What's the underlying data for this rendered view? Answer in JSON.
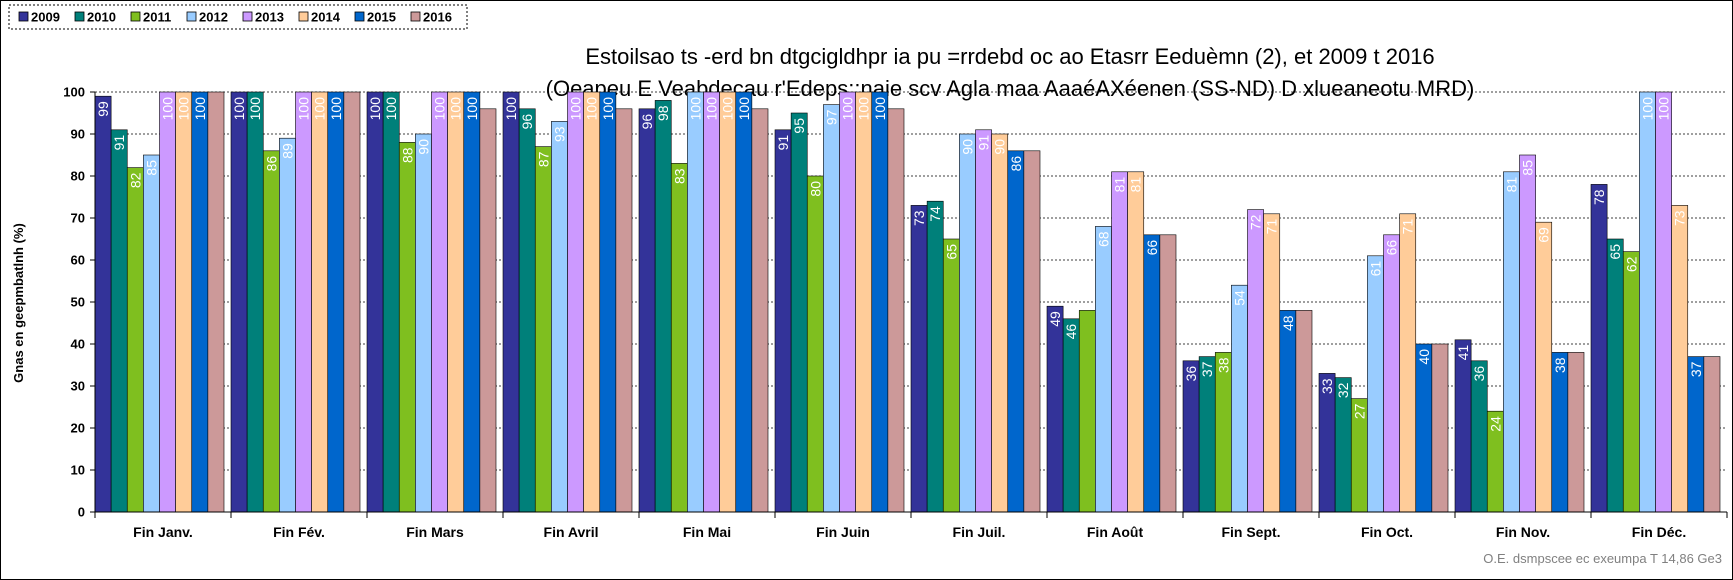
{
  "chart_data": {
    "type": "bar",
    "title_line1": "Estoilsao ts -erd bn dtgcigldhpr ia pu =rrdebd oc ao Etasrr Eeduèmn (2), et 2009 t 2016",
    "title_line2": "(Oeapeu E Veabdecau r'Edeps;:naie scv Agla maa AaaéAXéenen (SS-ND) D xlueaneotu MRD)",
    "ylabel": "Gnas en geepmbatlnh (%)",
    "ylim": [
      0,
      100
    ],
    "yticks": [
      "0",
      "10",
      "20",
      "30",
      "40",
      "50",
      "60",
      "70",
      "80",
      "90",
      "100"
    ],
    "grid": true,
    "legend_position": "top-left",
    "source": "O.E. dsmpscee ec exeumpa T 14,86 Ge3",
    "categories": [
      "Fin Janv.",
      "Fin Fév.",
      "Fin Mars",
      "Fin Avril",
      "Fin Mai",
      "Fin Juin",
      "Fin Juil.",
      "Fin Août",
      "Fin Sept.",
      "Fin Oct.",
      "Fin Nov.",
      "Fin Déc."
    ],
    "series": [
      {
        "name": "2009",
        "color": "#333399",
        "values": [
          99,
          100,
          100,
          100,
          96,
          91,
          73,
          49,
          36,
          33,
          41,
          78
        ],
        "labels": [
          "99",
          "100",
          "100",
          "100",
          "96",
          "91",
          "73",
          "49",
          "36",
          "33",
          "41",
          "78"
        ]
      },
      {
        "name": "2010",
        "color": "#00807a",
        "values": [
          91,
          100,
          100,
          96,
          98,
          95,
          74,
          46,
          37,
          32,
          36,
          65
        ],
        "labels": [
          "91",
          "100",
          "100",
          "96",
          "98",
          "95",
          "74",
          "46",
          "37",
          "32",
          "36",
          "65"
        ]
      },
      {
        "name": "2011",
        "color": "#7fbf1f",
        "values": [
          82,
          86,
          88,
          87,
          83,
          80,
          65,
          48,
          38,
          27,
          24,
          62
        ],
        "labels": [
          "82",
          "86",
          "88",
          "87",
          "83",
          "80",
          "65",
          "",
          "38",
          "27",
          "24",
          "62"
        ]
      },
      {
        "name": "2012",
        "color": "#99ccff",
        "values": [
          85,
          89,
          90,
          93,
          100,
          97,
          90,
          68,
          54,
          61,
          81,
          100
        ],
        "labels": [
          "85",
          "89",
          "90",
          "93",
          "100",
          "97",
          "90",
          "68",
          "54",
          "61",
          "81",
          "100"
        ]
      },
      {
        "name": "2013",
        "color": "#cc99ff",
        "values": [
          100,
          100,
          100,
          100,
          100,
          100,
          91,
          81,
          72,
          66,
          85,
          100
        ],
        "labels": [
          "100",
          "100",
          "100",
          "100",
          "100",
          "100",
          "91",
          "81",
          "72",
          "66",
          "85",
          "100"
        ]
      },
      {
        "name": "2014",
        "color": "#ffcc99",
        "values": [
          100,
          100,
          100,
          100,
          100,
          100,
          90,
          81,
          71,
          71,
          69,
          73
        ],
        "labels": [
          "100",
          "100",
          "100",
          "100",
          "100",
          "100",
          "90",
          "81",
          "71",
          "71",
          "69",
          "73"
        ]
      },
      {
        "name": "2015",
        "color": "#0066cc",
        "values": [
          100,
          100,
          100,
          100,
          100,
          100,
          86,
          66,
          48,
          40,
          38,
          37
        ],
        "labels": [
          "100",
          "100",
          "100",
          "100",
          "100",
          "100",
          "86",
          "66",
          "48",
          "40",
          "38",
          "37"
        ]
      },
      {
        "name": "2016",
        "color": "#cc9999",
        "values": [
          100,
          100,
          96,
          96,
          96,
          96,
          86,
          66,
          48,
          40,
          38,
          37
        ],
        "labels": [
          "",
          "",
          "",
          "",
          "",
          "",
          "",
          "",
          "",
          "",
          "",
          ""
        ]
      }
    ]
  }
}
